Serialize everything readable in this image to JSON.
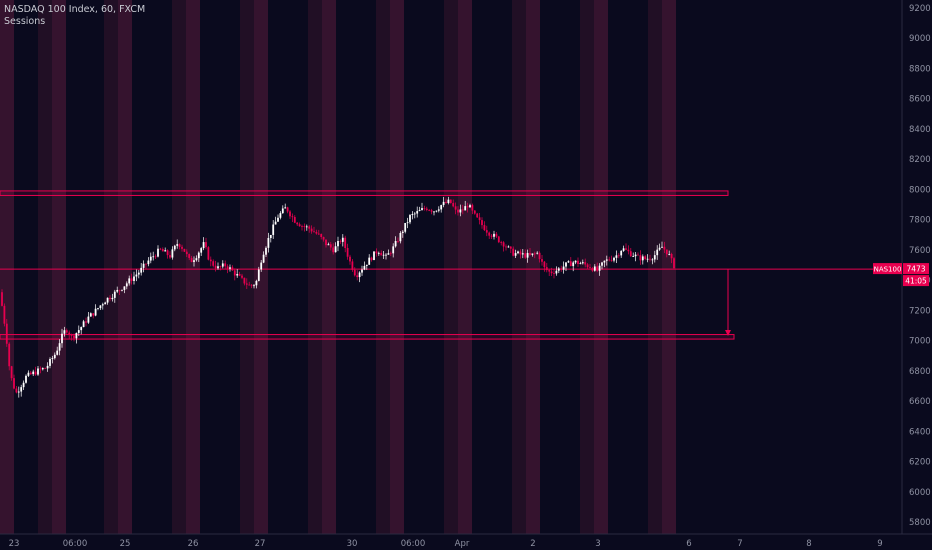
{
  "header": {
    "symbol_line": "NASDAQ 100 Index, 60, FXCM",
    "indicator": "Sessions"
  },
  "colors": {
    "background": "#0a0a1e",
    "bull_candle": "#ffffff",
    "bear_candle": "#e8004f",
    "session_band_a": "#3a1430",
    "session_band_b": "#231026",
    "level_line": "#e8004f",
    "axis_text": "#8f92a3",
    "price_badge": "#e8004f"
  },
  "axis": {
    "y_ticks": [
      "9200",
      "9000",
      "8800",
      "8600",
      "8400",
      "8200",
      "8000",
      "7800",
      "7600",
      "7400",
      "7200",
      "7000",
      "6800",
      "6600",
      "6400",
      "6200",
      "6000",
      "5800"
    ],
    "x_ticks": [
      "23",
      "06:00",
      "25",
      "26",
      "27",
      "30",
      "06:00",
      "Apr",
      "2",
      "3",
      "6",
      "7",
      "8",
      "9"
    ]
  },
  "price_badge": {
    "label": "NAS100",
    "price": "7473",
    "countdown": "41:05"
  },
  "chart_data": {
    "type": "candlestick",
    "title": "NASDAQ 100 Index, 60, FXCM",
    "ylim": [
      5750,
      9250
    ],
    "x_tick_labels": [
      "23",
      "06:00",
      "25",
      "26",
      "27",
      "30",
      "06:00",
      "Apr",
      "2",
      "3",
      "6",
      "7",
      "8",
      "9"
    ],
    "y_tick_values": [
      9200,
      9000,
      8800,
      8600,
      8400,
      8200,
      8000,
      7800,
      7600,
      7400,
      7200,
      7000,
      6800,
      6600,
      6400,
      6200,
      6000,
      5800
    ],
    "last_price": 7473,
    "horizontal_zones": [
      {
        "low": 7960,
        "high": 7990
      },
      {
        "low": 7010,
        "high": 7040
      }
    ],
    "horizontal_line": 7473,
    "measure_arrow": {
      "from": 7473,
      "to": 7030
    },
    "price_path": [
      [
        0,
        7320
      ],
      [
        6,
        7050
      ],
      [
        10,
        6780
      ],
      [
        16,
        6650
      ],
      [
        26,
        6760
      ],
      [
        38,
        6800
      ],
      [
        46,
        6820
      ],
      [
        52,
        6880
      ],
      [
        56,
        6920
      ],
      [
        60,
        7000
      ],
      [
        66,
        7080
      ],
      [
        72,
        7020
      ],
      [
        80,
        7080
      ],
      [
        88,
        7150
      ],
      [
        96,
        7200
      ],
      [
        104,
        7260
      ],
      [
        112,
        7300
      ],
      [
        120,
        7340
      ],
      [
        130,
        7400
      ],
      [
        140,
        7460
      ],
      [
        150,
        7540
      ],
      [
        160,
        7600
      ],
      [
        170,
        7560
      ],
      [
        178,
        7650
      ],
      [
        184,
        7600
      ],
      [
        190,
        7520
      ],
      [
        196,
        7560
      ],
      [
        204,
        7640
      ],
      [
        210,
        7520
      ],
      [
        218,
        7480
      ],
      [
        226,
        7500
      ],
      [
        234,
        7450
      ],
      [
        242,
        7400
      ],
      [
        250,
        7360
      ],
      [
        256,
        7380
      ],
      [
        262,
        7560
      ],
      [
        270,
        7700
      ],
      [
        278,
        7820
      ],
      [
        286,
        7880
      ],
      [
        294,
        7800
      ],
      [
        302,
        7760
      ],
      [
        310,
        7740
      ],
      [
        318,
        7700
      ],
      [
        326,
        7640
      ],
      [
        334,
        7600
      ],
      [
        342,
        7680
      ],
      [
        350,
        7520
      ],
      [
        356,
        7430
      ],
      [
        362,
        7480
      ],
      [
        370,
        7540
      ],
      [
        378,
        7600
      ],
      [
        386,
        7550
      ],
      [
        394,
        7620
      ],
      [
        402,
        7720
      ],
      [
        410,
        7820
      ],
      [
        418,
        7850
      ],
      [
        426,
        7880
      ],
      [
        434,
        7860
      ],
      [
        442,
        7900
      ],
      [
        450,
        7920
      ],
      [
        456,
        7850
      ],
      [
        462,
        7860
      ],
      [
        468,
        7900
      ],
      [
        474,
        7830
      ],
      [
        480,
        7780
      ],
      [
        488,
        7720
      ],
      [
        496,
        7680
      ],
      [
        504,
        7640
      ],
      [
        512,
        7580
      ],
      [
        520,
        7570
      ],
      [
        530,
        7560
      ],
      [
        538,
        7580
      ],
      [
        544,
        7480
      ],
      [
        550,
        7450
      ],
      [
        558,
        7470
      ],
      [
        566,
        7500
      ],
      [
        574,
        7520
      ],
      [
        582,
        7510
      ],
      [
        590,
        7490
      ],
      [
        598,
        7460
      ],
      [
        604,
        7520
      ],
      [
        610,
        7540
      ],
      [
        616,
        7560
      ],
      [
        622,
        7610
      ],
      [
        630,
        7580
      ],
      [
        638,
        7550
      ],
      [
        646,
        7540
      ],
      [
        654,
        7560
      ],
      [
        662,
        7620
      ],
      [
        668,
        7580
      ],
      [
        672,
        7520
      ],
      [
        676,
        7473
      ]
    ]
  }
}
